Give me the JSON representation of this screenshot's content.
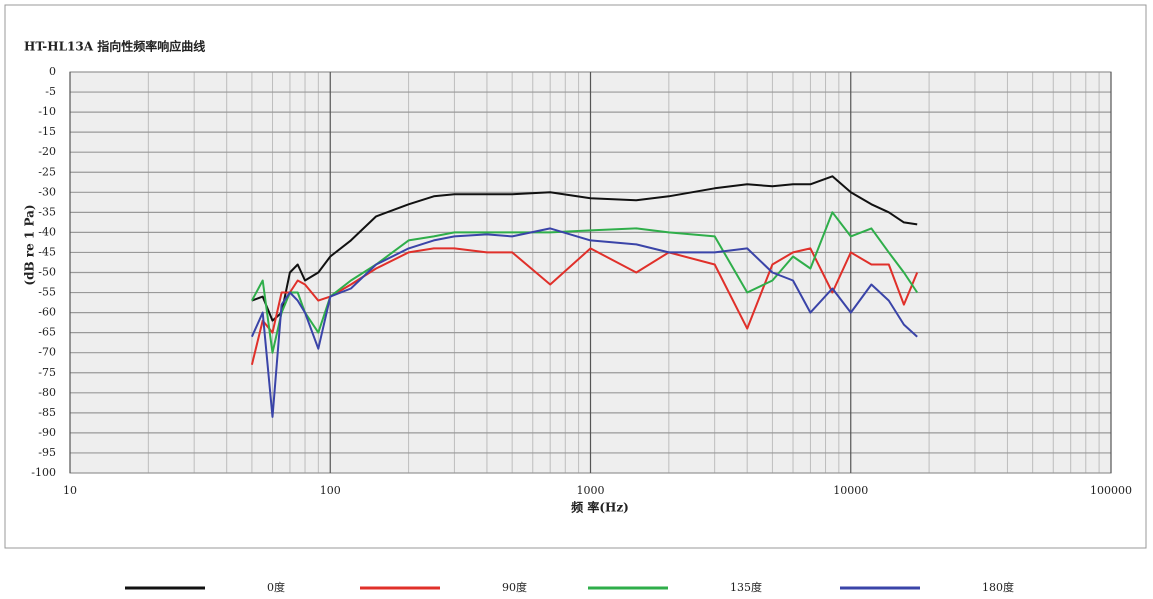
{
  "chart_data": {
    "type": "line",
    "title": "HT-HL13A 指向性频率响应曲线",
    "x_label": "频 率(Hz)",
    "y_label": "(dB re 1 Pa)",
    "x_log": true,
    "grid": true,
    "xlim": [
      10,
      100000
    ],
    "xticks": [
      10,
      100,
      1000,
      10000,
      100000
    ],
    "ylim": [
      -100,
      0
    ],
    "yticks": [
      0,
      -5,
      -10,
      -15,
      -20,
      -25,
      -30,
      -35,
      -40,
      -45,
      -50,
      -55,
      -60,
      -65,
      -70,
      -75,
      -80,
      -85,
      -90,
      -95,
      -100
    ],
    "x": [
      50,
      55,
      60,
      65,
      70,
      75,
      80,
      90,
      100,
      120,
      150,
      200,
      250,
      300,
      400,
      500,
      700,
      1000,
      1500,
      2000,
      3000,
      4000,
      5000,
      6000,
      7000,
      8500,
      10000,
      12000,
      14000,
      16000,
      18000
    ],
    "series": [
      {
        "name": "0度",
        "color": "#111111",
        "values": [
          -57,
          -56,
          -62,
          -60,
          -50,
          -48,
          -52,
          -50,
          -46,
          -42,
          -36,
          -33,
          -31,
          -30.5,
          -30.5,
          -30.5,
          -30,
          -31.5,
          -32,
          -31,
          -29,
          -28,
          -28.5,
          -28,
          -28,
          -26,
          -30,
          -33,
          -35,
          -37.5,
          -38
        ]
      },
      {
        "name": "90度",
        "color": "#e0302a",
        "values": [
          -73,
          -62,
          -65,
          -55,
          -55,
          -52,
          -53,
          -57,
          -56,
          -53,
          -49,
          -45,
          -44,
          -44,
          -45,
          -45,
          -53,
          -44,
          -50,
          -45,
          -48,
          -64,
          -48,
          -45,
          -44,
          -55,
          -45,
          -48,
          -48,
          -58,
          -50
        ]
      },
      {
        "name": "135度",
        "color": "#2fae4a",
        "values": [
          -57,
          -52,
          -70,
          -60,
          -55,
          -55,
          -60,
          -65,
          -56,
          -52,
          -48,
          -42,
          -41,
          -40,
          -40,
          -40,
          -40,
          -39.5,
          -39,
          -40,
          -41,
          -55,
          -52,
          -46,
          -49,
          -35,
          -41,
          -39,
          -45,
          -50,
          -55
        ]
      },
      {
        "name": "180度",
        "color": "#3a44a8",
        "values": [
          -66,
          -60,
          -86,
          -58,
          -55,
          -57,
          -60,
          -69,
          -56,
          -54,
          -48,
          -44,
          -42,
          -41,
          -40.5,
          -41,
          -39,
          -42,
          -43,
          -45,
          -45,
          -44,
          -50,
          -52,
          -60,
          -54,
          -60,
          -53,
          -57,
          -63,
          -66
        ]
      }
    ]
  }
}
